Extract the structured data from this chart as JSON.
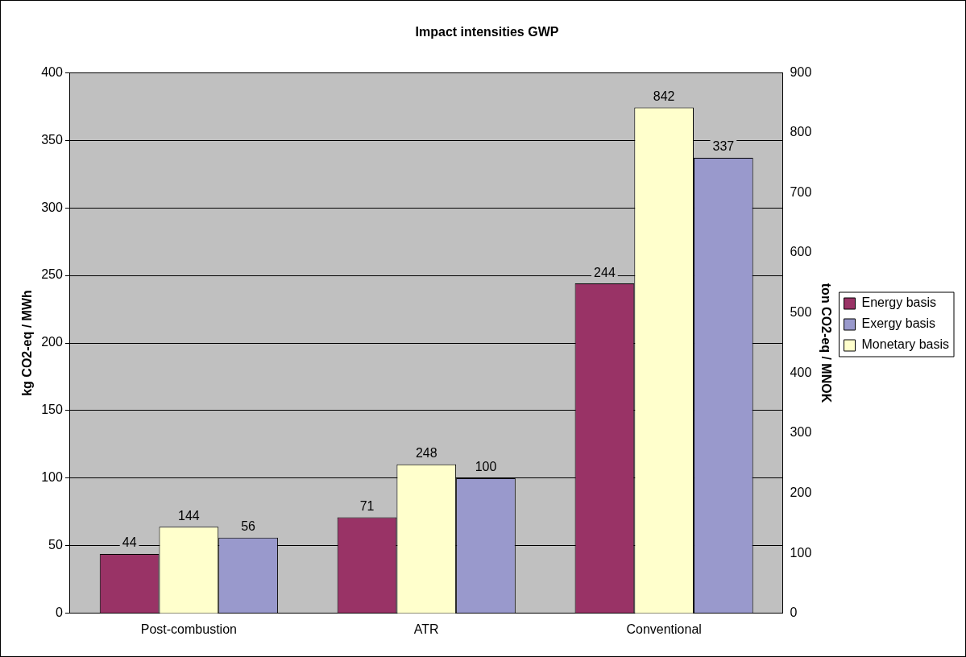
{
  "chart_data": {
    "type": "bar",
    "title": "Impact intensities GWP",
    "ylabel": "kg CO2-eq / MWh",
    "y2label": "ton CO2-eq / MNOK",
    "categories": [
      "Post-combustion",
      "ATR",
      "Conventional"
    ],
    "series": [
      {
        "name": "Energy basis",
        "color": "#993366",
        "values": [
          44,
          71,
          244
        ]
      },
      {
        "name": "Monetary basis",
        "color": "#ffffcc",
        "values": [
          144,
          248,
          842
        ],
        "axis": "y2"
      },
      {
        "name": "Exergy basis",
        "color": "#9999cc",
        "values": [
          56,
          100,
          337
        ]
      }
    ],
    "ylim": [
      0,
      400
    ],
    "yticks": [
      0,
      50,
      100,
      150,
      200,
      250,
      300,
      350,
      400
    ],
    "y2lim": [
      0,
      900
    ],
    "y2ticks": [
      0,
      100,
      200,
      300,
      400,
      500,
      600,
      700,
      800,
      900
    ],
    "grid": "y",
    "legend": "right",
    "data_labels": true
  }
}
